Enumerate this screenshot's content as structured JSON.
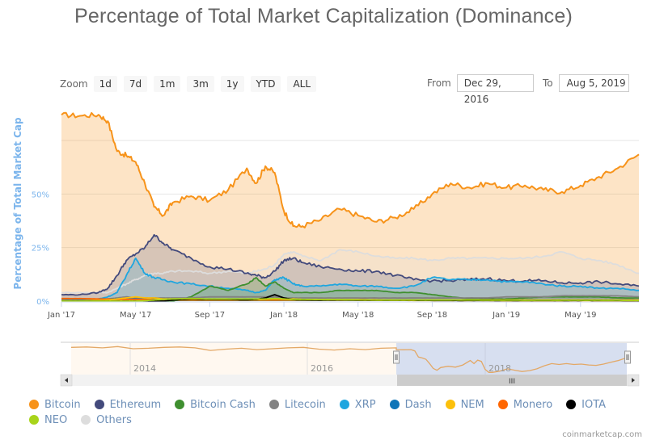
{
  "title": "Percentage of Total Market Capitalization (Dominance)",
  "zoom": {
    "label": "Zoom",
    "buttons": [
      "1d",
      "7d",
      "1m",
      "3m",
      "1y",
      "YTD",
      "ALL"
    ]
  },
  "range": {
    "from_label": "From",
    "from_value": "Dec 29, 2016",
    "to_label": "To",
    "to_value": "Aug 5, 2019"
  },
  "navigator": {
    "year_labels": [
      "2014",
      "2016",
      "2018"
    ],
    "scroll_grip": "III"
  },
  "credit": "coinmarketcap.com",
  "colors": {
    "bitcoin": "#f7931a",
    "ethereum": "#434a7c",
    "bitcoin_cash": "#3f8f2f",
    "litecoin": "#838383",
    "xrp": "#1fa6df",
    "dash": "#0e75b8",
    "nem": "#fcc00b",
    "monero": "#ff6600",
    "iota": "#000000",
    "neo": "#a8d41a",
    "others": "#dddddd",
    "axis_label": "#7cb5ec",
    "navigator_mask": "#d0d9ec"
  },
  "chart_data": {
    "type": "area",
    "title": "Percentage of Total Market Capitalization (Dominance)",
    "xlabel": "",
    "ylabel": "Percentage of Total Market Cap",
    "x_ticks": [
      "Jan '17",
      "May '17",
      "Sep '17",
      "Jan '18",
      "May '18",
      "Sep '18",
      "Jan '19",
      "May '19"
    ],
    "x_unit": "months since Jan 1 2017",
    "x_range": [
      0,
      31.15
    ],
    "y_ticks": [
      "0%",
      "25%",
      "50%"
    ],
    "y_range": [
      0,
      100
    ],
    "grid": true,
    "legend_position": "bottom",
    "x": [
      0,
      1,
      2,
      2.5,
      3,
      3.5,
      4,
      4.5,
      5,
      5.5,
      6,
      7,
      8,
      9,
      10,
      10.5,
      11,
      11.5,
      12,
      12.5,
      13,
      14,
      15,
      16,
      17,
      18,
      19,
      20,
      21,
      22,
      23,
      24,
      25,
      26,
      27,
      28,
      29,
      30,
      31.15
    ],
    "series": [
      {
        "name": "Bitcoin",
        "values": [
          87,
          86.5,
          87,
          84,
          70,
          68,
          65,
          55,
          44,
          40,
          46,
          49,
          47,
          52,
          62,
          55,
          63,
          60,
          42,
          35,
          35,
          38,
          43,
          40,
          37,
          39,
          43,
          50,
          55,
          53,
          55,
          53,
          54,
          52,
          51,
          54,
          58,
          62,
          68.5
        ]
      },
      {
        "name": "Ethereum",
        "values": [
          3,
          3,
          4,
          6,
          12,
          19,
          22,
          25,
          31,
          27,
          24,
          20,
          16,
          15,
          13,
          12,
          11,
          14,
          19,
          20,
          18,
          16,
          15,
          14,
          14,
          12,
          10,
          9.5,
          9.5,
          10,
          10.5,
          9.5,
          9.5,
          9.5,
          8.5,
          8.5,
          9,
          8,
          7
        ]
      },
      {
        "name": "Others",
        "values": [
          4,
          4,
          4,
          4,
          6,
          8,
          10,
          12,
          13,
          13,
          14,
          14,
          13,
          14,
          13,
          14,
          15,
          17,
          22,
          23,
          21,
          19,
          24,
          23,
          21,
          20,
          20,
          19,
          20,
          20,
          20,
          20,
          20,
          21,
          23,
          20,
          19,
          17,
          13
        ]
      },
      {
        "name": "XRP",
        "values": [
          0.5,
          0.8,
          1,
          2,
          4,
          12,
          20,
          13,
          11,
          10,
          9,
          8,
          7,
          6,
          5,
          4,
          5,
          10,
          11,
          8,
          7,
          7,
          8,
          7,
          7,
          6,
          7,
          11,
          10,
          10,
          10,
          9,
          9,
          8,
          7,
          7,
          6,
          6,
          5
        ]
      },
      {
        "name": "Bitcoin Cash",
        "values": [
          0,
          0,
          0,
          0,
          0,
          0,
          0,
          0,
          0,
          0,
          0,
          2,
          7,
          5,
          8,
          11,
          7,
          9,
          6,
          4,
          4,
          4,
          5,
          5,
          5,
          4,
          4,
          3,
          2,
          1,
          1,
          1,
          1.5,
          2,
          2,
          2,
          2,
          1.5,
          1.5
        ]
      },
      {
        "name": "Litecoin",
        "values": [
          1,
          1,
          1,
          1,
          1.5,
          2,
          1.5,
          1.5,
          1.5,
          1.5,
          1.5,
          1.5,
          2,
          2,
          2,
          2,
          2,
          2,
          1.5,
          1.5,
          1.5,
          1.5,
          1.5,
          1.5,
          1.5,
          1.5,
          1.5,
          1.5,
          1.5,
          1.5,
          1.5,
          2,
          2,
          2,
          2.5,
          2.5,
          2.5,
          2.5,
          2
        ]
      },
      {
        "name": "Dash",
        "values": [
          0.8,
          0.8,
          0.8,
          1,
          1,
          1,
          1,
          1,
          1,
          1,
          1,
          1,
          1,
          1,
          1,
          1,
          0.8,
          0.8,
          0.8,
          0.8,
          0.8,
          0.7,
          0.7,
          0.6,
          0.6,
          0.6,
          0.6,
          0.5,
          0.5,
          0.4,
          0.4,
          0.4,
          0.4,
          0.4,
          0.4,
          0.4,
          0.4,
          0.4,
          0.3
        ]
      },
      {
        "name": "NEM",
        "values": [
          0.2,
          0.2,
          0.3,
          0.5,
          1,
          1.5,
          2,
          1.5,
          1.5,
          1,
          1,
          1,
          0.8,
          0.8,
          0.8,
          0.8,
          1,
          1.2,
          1,
          1,
          0.8,
          0.6,
          0.6,
          0.5,
          0.4,
          0.4,
          0.3,
          0.3,
          0.3,
          0.3,
          0.3,
          0.2,
          0.2,
          0.2,
          0.2,
          0.2,
          0.2,
          0.2,
          0.1
        ]
      },
      {
        "name": "Monero",
        "values": [
          1.2,
          1.2,
          1,
          1,
          0.8,
          0.8,
          0.8,
          0.8,
          0.7,
          0.7,
          0.7,
          0.6,
          0.6,
          0.6,
          0.6,
          0.6,
          0.6,
          0.6,
          0.6,
          0.6,
          0.7,
          0.7,
          0.7,
          0.7,
          0.6,
          0.5,
          0.5,
          0.5,
          0.5,
          0.5,
          0.5,
          0.5,
          0.5,
          0.5,
          0.5,
          0.5,
          0.5,
          0.5,
          0.5
        ]
      },
      {
        "name": "IOTA",
        "values": [
          0,
          0,
          0,
          0,
          0,
          0,
          0,
          0,
          0,
          0,
          0.5,
          1,
          0.8,
          0.8,
          0.6,
          0.8,
          1.5,
          3,
          1.5,
          0.7,
          0.6,
          0.5,
          0.6,
          0.5,
          0.4,
          0.4,
          0.4,
          0.3,
          0.3,
          0.3,
          0.3,
          0.3,
          0.3,
          0.3,
          0.3,
          0.3,
          0.3,
          0.3,
          0.2
        ]
      },
      {
        "name": "NEO",
        "values": [
          0,
          0,
          0,
          0,
          0,
          0,
          0,
          0.2,
          0.5,
          0.8,
          1,
          1.2,
          1,
          1,
          1,
          1,
          1,
          1.2,
          1,
          0.8,
          0.8,
          0.7,
          0.7,
          0.6,
          0.5,
          0.5,
          0.5,
          0.5,
          0.5,
          0.5,
          0.4,
          0.4,
          0.4,
          0.4,
          0.4,
          0.4,
          0.4,
          0.4,
          0.3
        ]
      }
    ],
    "navigator": {
      "x_ticks": [
        "2014",
        "2016",
        "2018"
      ],
      "selected_range": [
        "Dec 29, 2016",
        "Aug 5, 2019"
      ]
    }
  },
  "legend": [
    {
      "name": "Bitcoin",
      "color_key": "bitcoin"
    },
    {
      "name": "Ethereum",
      "color_key": "ethereum"
    },
    {
      "name": "Bitcoin Cash",
      "color_key": "bitcoin_cash"
    },
    {
      "name": "Litecoin",
      "color_key": "litecoin"
    },
    {
      "name": "XRP",
      "color_key": "xrp"
    },
    {
      "name": "Dash",
      "color_key": "dash"
    },
    {
      "name": "NEM",
      "color_key": "nem"
    },
    {
      "name": "Monero",
      "color_key": "monero"
    },
    {
      "name": "IOTA",
      "color_key": "iota"
    },
    {
      "name": "NEO",
      "color_key": "neo"
    },
    {
      "name": "Others",
      "color_key": "others"
    }
  ]
}
